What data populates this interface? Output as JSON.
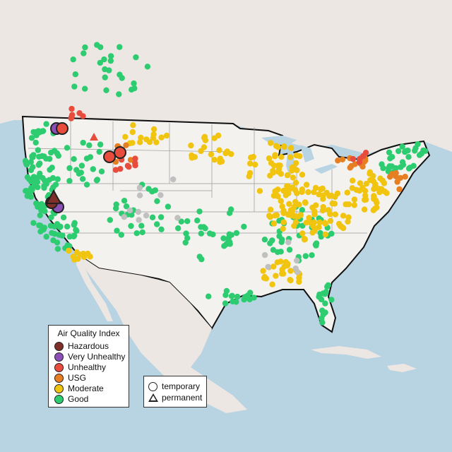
{
  "legend": {
    "title": "Air Quality Index",
    "categories": [
      {
        "label": "Hazardous",
        "color": "#7e2f2a"
      },
      {
        "label": "Very Unhealthy",
        "color": "#8b4fb5"
      },
      {
        "label": "Unhealthy",
        "color": "#e74c3c"
      },
      {
        "label": "USG",
        "color": "#e67e22"
      },
      {
        "label": "Moderate",
        "color": "#f1c40f"
      },
      {
        "label": "Good",
        "color": "#2ecc71"
      }
    ]
  },
  "monitor_legend": {
    "temporary": "temporary",
    "permanent": "permanent"
  },
  "colors": {
    "ocean": "#b8d3e2",
    "land": "#eeeae5",
    "us_land": "#f4f2ef",
    "nodata": "#c0c0c0"
  }
}
